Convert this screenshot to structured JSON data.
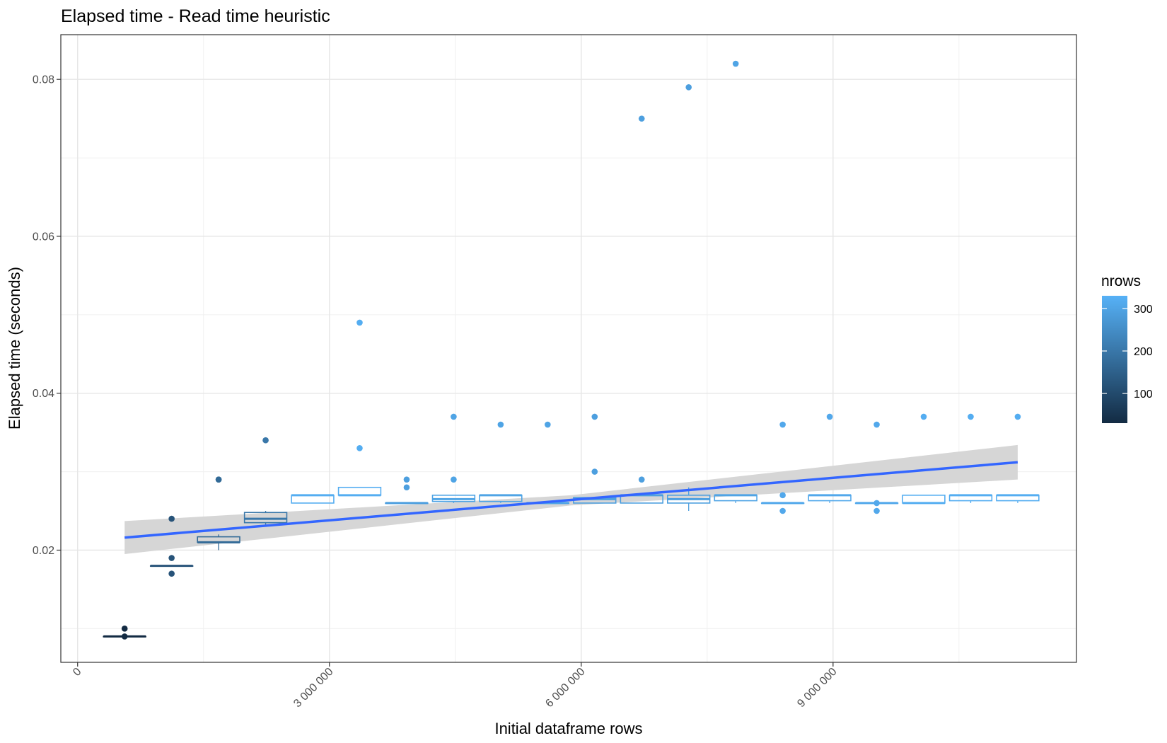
{
  "chart_data": {
    "type": "box",
    "title": "Elapsed time - Read time heuristic",
    "xlabel": "Initial dataframe rows",
    "ylabel": "Elapsed time (seconds)",
    "xlim": [
      -200000,
      11900000
    ],
    "ylim": [
      0.0057,
      0.0857
    ],
    "x_ticks": [
      0,
      3000000,
      6000000,
      9000000
    ],
    "x_tick_labels": [
      "0",
      "3 000 000",
      "6 000 000",
      "9 000 000"
    ],
    "y_ticks": [
      0.02,
      0.04,
      0.06,
      0.08
    ],
    "y_tick_labels": [
      "0.02",
      "0.04",
      "0.06",
      "0.08"
    ],
    "grid": true,
    "legend": {
      "title": "nrows",
      "position": "right",
      "type": "colorbar",
      "range": [
        30,
        330
      ],
      "ticks": [
        100,
        200,
        300
      ],
      "tick_labels": [
        "100",
        "200",
        "300"
      ],
      "color_low": "#132B43",
      "color_high": "#56B1F7"
    },
    "boxes": [
      {
        "x": 560000,
        "nrows": 30,
        "q1": 0.009,
        "median": 0.009,
        "q3": 0.009,
        "lower": 0.009,
        "upper": 0.009,
        "outliers": [
          0.01,
          0.009
        ]
      },
      {
        "x": 1120000,
        "nrows": 120,
        "q1": 0.018,
        "median": 0.018,
        "q3": 0.018,
        "lower": 0.018,
        "upper": 0.018,
        "outliers": [
          0.024,
          0.019,
          0.017
        ]
      },
      {
        "x": 1680000,
        "nrows": 170,
        "q1": 0.021,
        "median": 0.021,
        "q3": 0.0217,
        "lower": 0.02,
        "upper": 0.022,
        "outliers": [
          0.029,
          0.029
        ]
      },
      {
        "x": 2240000,
        "nrows": 200,
        "q1": 0.0235,
        "median": 0.024,
        "q3": 0.0248,
        "lower": 0.023,
        "upper": 0.025,
        "outliers": [
          0.034
        ]
      },
      {
        "x": 2800000,
        "nrows": 320,
        "q1": 0.026,
        "median": 0.027,
        "q3": 0.027,
        "lower": 0.026,
        "upper": 0.027,
        "outliers": []
      },
      {
        "x": 3360000,
        "nrows": 320,
        "q1": 0.027,
        "median": 0.027,
        "q3": 0.028,
        "lower": 0.027,
        "upper": 0.028,
        "outliers": [
          0.049,
          0.033
        ]
      },
      {
        "x": 3920000,
        "nrows": 290,
        "q1": 0.026,
        "median": 0.026,
        "q3": 0.026,
        "lower": 0.026,
        "upper": 0.026,
        "outliers": [
          0.029,
          0.028
        ]
      },
      {
        "x": 4480000,
        "nrows": 300,
        "q1": 0.0262,
        "median": 0.0265,
        "q3": 0.027,
        "lower": 0.026,
        "upper": 0.027,
        "outliers": [
          0.037,
          0.029
        ]
      },
      {
        "x": 5040000,
        "nrows": 300,
        "q1": 0.0262,
        "median": 0.027,
        "q3": 0.027,
        "lower": 0.026,
        "upper": 0.027,
        "outliers": [
          0.036
        ]
      },
      {
        "x": 5600000,
        "nrows": 300,
        "q1": 0.026,
        "median": 0.026,
        "q3": 0.026,
        "lower": 0.026,
        "upper": 0.026,
        "outliers": [
          0.036
        ]
      },
      {
        "x": 6160000,
        "nrows": 290,
        "q1": 0.026,
        "median": 0.0265,
        "q3": 0.0267,
        "lower": 0.026,
        "upper": 0.0267,
        "outliers": [
          0.037,
          0.03
        ]
      },
      {
        "x": 6720000,
        "nrows": 290,
        "q1": 0.026,
        "median": 0.027,
        "q3": 0.027,
        "lower": 0.026,
        "upper": 0.027,
        "outliers": [
          0.075,
          0.029
        ]
      },
      {
        "x": 7280000,
        "nrows": 290,
        "q1": 0.026,
        "median": 0.0265,
        "q3": 0.027,
        "lower": 0.025,
        "upper": 0.028,
        "outliers": [
          0.079
        ]
      },
      {
        "x": 7840000,
        "nrows": 300,
        "q1": 0.0263,
        "median": 0.027,
        "q3": 0.027,
        "lower": 0.026,
        "upper": 0.027,
        "outliers": [
          0.082
        ]
      },
      {
        "x": 8400000,
        "nrows": 310,
        "q1": 0.026,
        "median": 0.026,
        "q3": 0.026,
        "lower": 0.026,
        "upper": 0.026,
        "outliers": [
          0.036,
          0.027,
          0.025
        ]
      },
      {
        "x": 8960000,
        "nrows": 310,
        "q1": 0.0263,
        "median": 0.027,
        "q3": 0.027,
        "lower": 0.026,
        "upper": 0.027,
        "outliers": [
          0.037
        ]
      },
      {
        "x": 9520000,
        "nrows": 310,
        "q1": 0.026,
        "median": 0.026,
        "q3": 0.026,
        "lower": 0.026,
        "upper": 0.026,
        "outliers": [
          0.036,
          0.026,
          0.025
        ]
      },
      {
        "x": 10080000,
        "nrows": 320,
        "q1": 0.026,
        "median": 0.026,
        "q3": 0.027,
        "lower": 0.026,
        "upper": 0.027,
        "outliers": [
          0.037
        ]
      },
      {
        "x": 10640000,
        "nrows": 320,
        "q1": 0.0263,
        "median": 0.027,
        "q3": 0.027,
        "lower": 0.026,
        "upper": 0.027,
        "outliers": [
          0.037
        ]
      },
      {
        "x": 11200000,
        "nrows": 320,
        "q1": 0.0263,
        "median": 0.027,
        "q3": 0.027,
        "lower": 0.026,
        "upper": 0.027,
        "outliers": [
          0.037
        ]
      }
    ],
    "trend": {
      "method": "lm",
      "color": "#3366FF",
      "band_color": "#D6D6D6",
      "x": [
        560000,
        11200000
      ],
      "y": [
        0.0216,
        0.0312
      ],
      "lower": [
        0.0195,
        0.029
      ],
      "upper": [
        0.0237,
        0.0334
      ],
      "x_mid": 5880000,
      "band_mid": [
        0.0257,
        0.027
      ]
    }
  }
}
